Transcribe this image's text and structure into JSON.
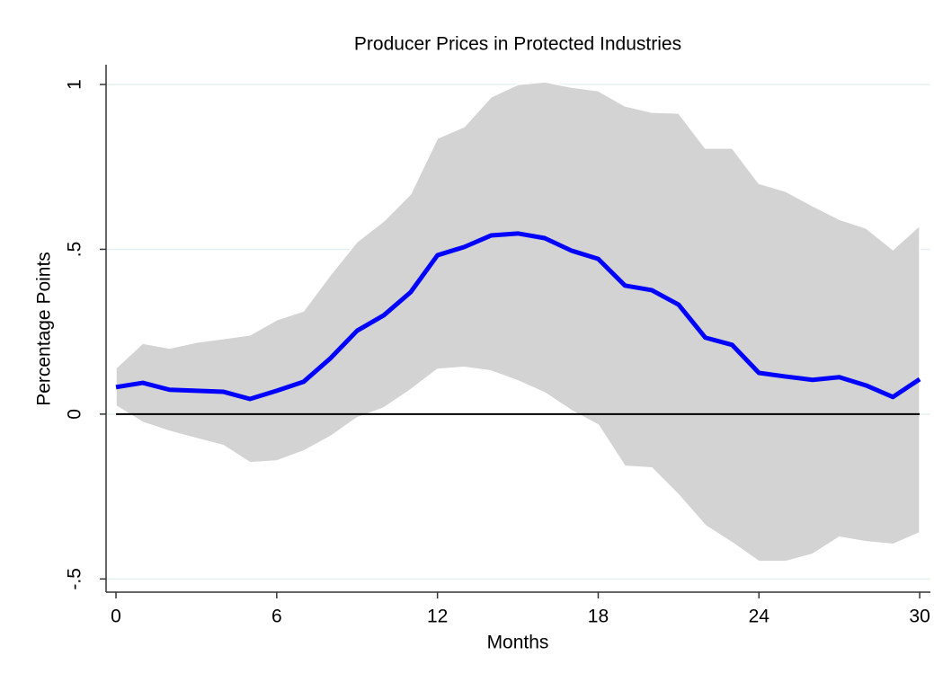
{
  "chart_data": {
    "type": "line",
    "title": "Producer Prices in Protected Industries",
    "x_label": "Months",
    "y_label": "Percentage Points",
    "x": [
      0,
      1,
      2,
      3,
      4,
      5,
      6,
      7,
      8,
      9,
      10,
      11,
      12,
      13,
      14,
      15,
      16,
      17,
      18,
      19,
      20,
      21,
      22,
      23,
      24,
      25,
      26,
      27,
      28,
      29,
      30
    ],
    "values": [
      0.082,
      0.095,
      0.074,
      0.071,
      0.068,
      0.046,
      0.071,
      0.098,
      0.169,
      0.253,
      0.3,
      0.37,
      0.482,
      0.507,
      0.542,
      0.548,
      0.534,
      0.496,
      0.471,
      0.39,
      0.376,
      0.332,
      0.232,
      0.21,
      0.125,
      0.114,
      0.104,
      0.112,
      0.087,
      0.052,
      0.106
    ],
    "upper": [
      0.14,
      0.215,
      0.2,
      0.218,
      0.229,
      0.24,
      0.286,
      0.313,
      0.422,
      0.523,
      0.586,
      0.668,
      0.837,
      0.872,
      0.962,
      1.0,
      1.008,
      0.992,
      0.981,
      0.935,
      0.916,
      0.913,
      0.807,
      0.807,
      0.7,
      0.676,
      0.632,
      0.591,
      0.564,
      0.499,
      0.572
    ],
    "lower": [
      0.025,
      -0.025,
      -0.052,
      -0.074,
      -0.095,
      -0.147,
      -0.142,
      -0.112,
      -0.068,
      -0.011,
      0.019,
      0.074,
      0.136,
      0.142,
      0.131,
      0.101,
      0.065,
      0.011,
      -0.033,
      -0.158,
      -0.163,
      -0.245,
      -0.338,
      -0.39,
      -0.447,
      -0.447,
      -0.425,
      -0.373,
      -0.387,
      -0.395,
      -0.36
    ],
    "color": "#0000ff",
    "band_color": "#d3d3d3",
    "reference_line": 0,
    "xlim": [
      -0.37,
      30.4
    ],
    "ylim": [
      -0.54,
      1.06
    ],
    "xticks": [
      0,
      6,
      12,
      18,
      24,
      30
    ],
    "yticks": [
      {
        "value": -0.5,
        "label": "-.5"
      },
      {
        "value": 0,
        "label": "0"
      },
      {
        "value": 0.5,
        "label": ".5"
      },
      {
        "value": 1,
        "label": "1"
      }
    ],
    "grid": true
  }
}
